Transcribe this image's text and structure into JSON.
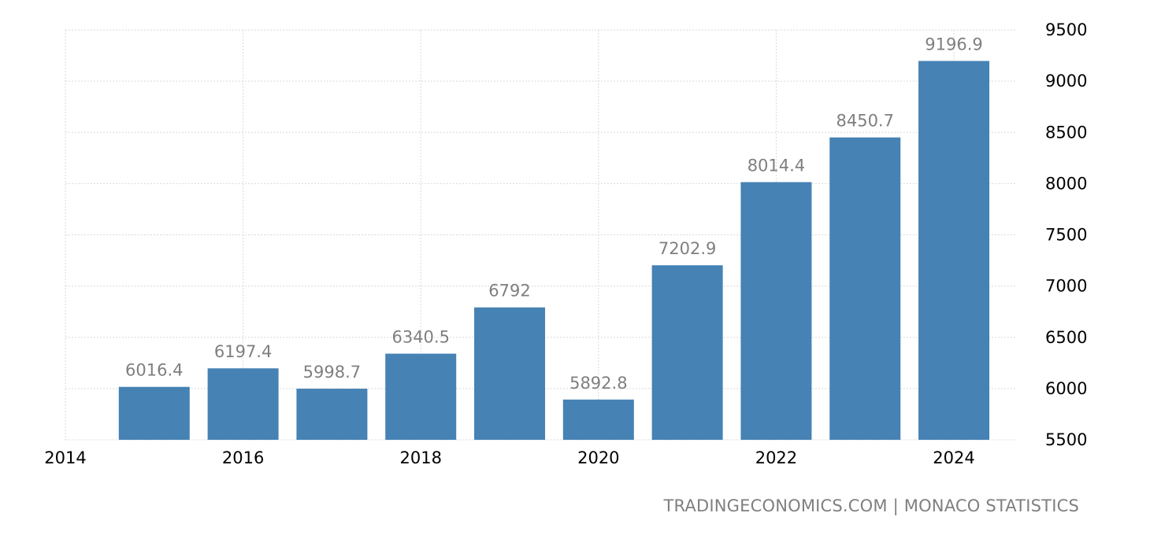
{
  "chart_data": {
    "type": "bar",
    "categories": [
      "2015",
      "2016",
      "2017",
      "2018",
      "2019",
      "2020",
      "2021",
      "2022",
      "2023",
      "2024"
    ],
    "values": [
      6016.4,
      6197.4,
      5998.7,
      6340.5,
      6792,
      5892.8,
      7202.9,
      8014.4,
      8450.7,
      9196.9
    ],
    "data_labels": [
      "6016.4",
      "6197.4",
      "5998.7",
      "6340.5",
      "6792",
      "5892.8",
      "7202.9",
      "8014.4",
      "8450.7",
      "9196.9"
    ],
    "x_ticks": [
      "2014",
      "2016",
      "2018",
      "2020",
      "2022",
      "2024"
    ],
    "y_ticks": [
      "5500",
      "6000",
      "6500",
      "7000",
      "7500",
      "8000",
      "8500",
      "9000",
      "9500"
    ],
    "ylim": [
      5500,
      9500
    ],
    "xlim": [
      2014,
      2024.7
    ],
    "y_axis_position": "right",
    "grid": true,
    "bar_color": "#4682b4",
    "label_color": "#7f7f7f"
  },
  "source_text": "TRADINGECONOMICS.COM | MONACO STATISTICS"
}
